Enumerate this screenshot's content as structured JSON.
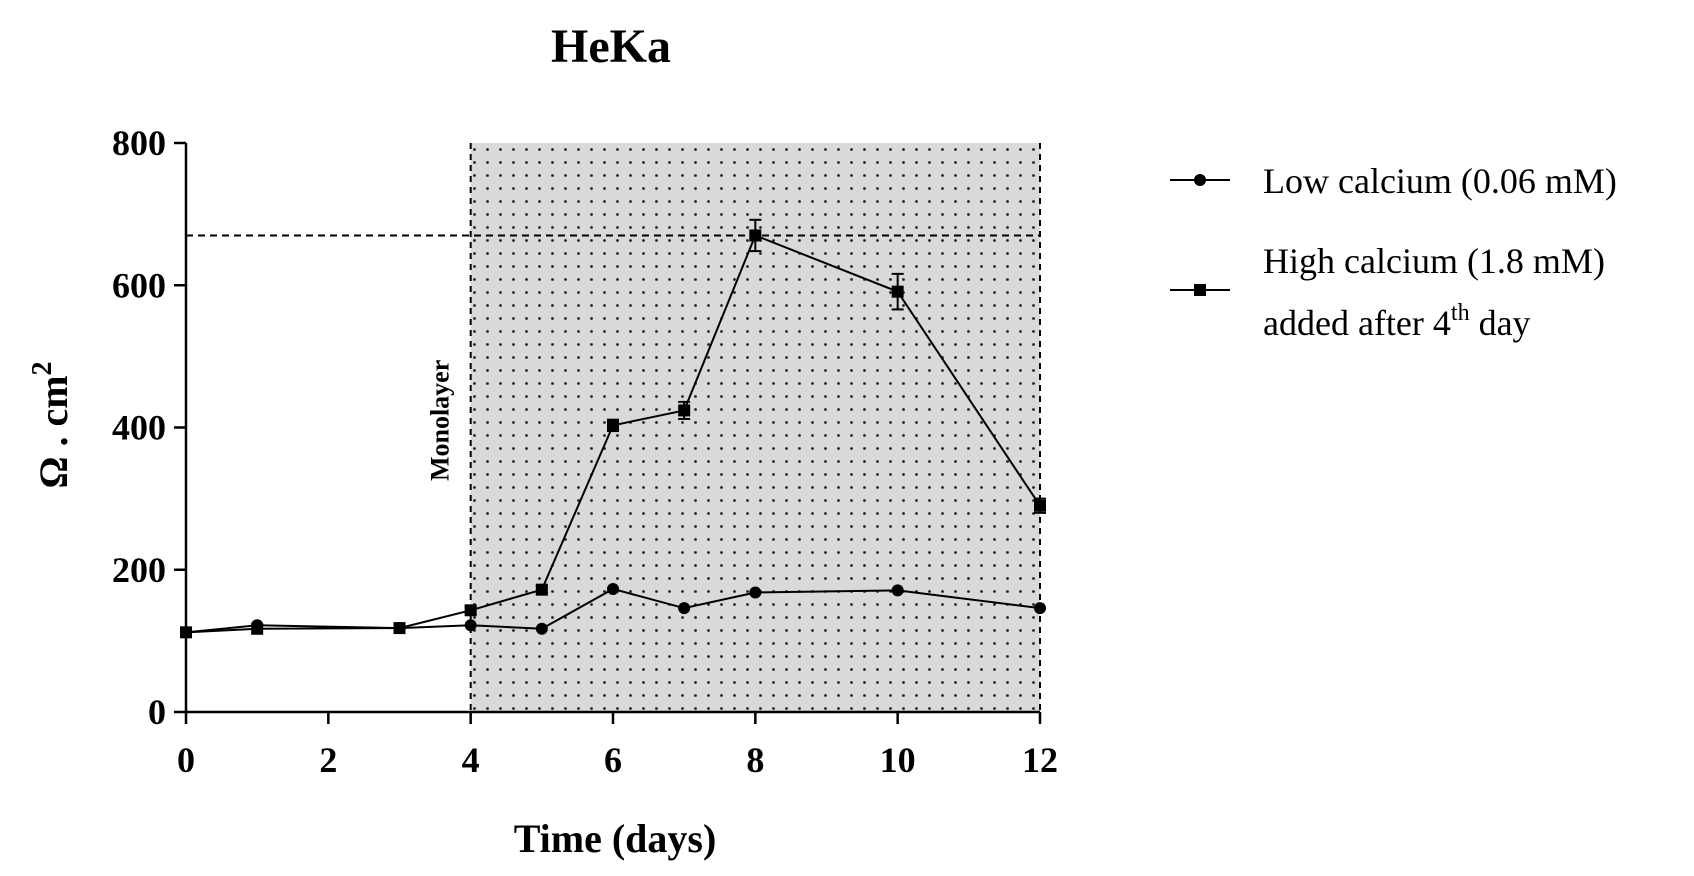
{
  "chart_data": {
    "type": "line",
    "title": "HeKa",
    "xlabel": "Time (days)",
    "ylabel": "Ω . cm",
    "ylabel_superscript": "2",
    "xlim": [
      0,
      12
    ],
    "ylim": [
      0,
      800
    ],
    "xticks": [
      0,
      2,
      4,
      6,
      8,
      10,
      12
    ],
    "yticks": [
      0,
      200,
      400,
      600,
      800
    ],
    "grid": false,
    "shaded_region": {
      "x_start": 4,
      "x_end": 12,
      "label": "Monolayer",
      "pattern": "dotted",
      "color": "#d9d9d9"
    },
    "reference_line": {
      "y": 670,
      "x_start": 0,
      "x_end": 12,
      "style": "dashed"
    },
    "legend_position": "right",
    "series": [
      {
        "name": "Low calcium (0.06 mM)",
        "marker": "circle",
        "x": [
          0,
          1,
          3,
          4,
          5,
          6,
          7,
          8,
          10,
          12
        ],
        "y": [
          112,
          122,
          118,
          122,
          117,
          173,
          146,
          168,
          171,
          146
        ],
        "err": [
          3,
          3,
          3,
          3,
          3,
          4,
          3,
          3,
          3,
          3
        ]
      },
      {
        "name": "High calcium (1.8 mM) added after 4th day",
        "legend_line1": "High calcium (1.8 mM)",
        "legend_line2_pre": "added after 4",
        "legend_line2_sup": "th",
        "legend_line2_post": " day",
        "marker": "square",
        "x": [
          0,
          1,
          3,
          4,
          5,
          6,
          7,
          8,
          10,
          12
        ],
        "y": [
          112,
          117,
          118,
          143,
          172,
          403,
          424,
          670,
          591,
          290
        ],
        "err": [
          3,
          3,
          3,
          5,
          5,
          8,
          12,
          22,
          25,
          10
        ]
      }
    ]
  }
}
